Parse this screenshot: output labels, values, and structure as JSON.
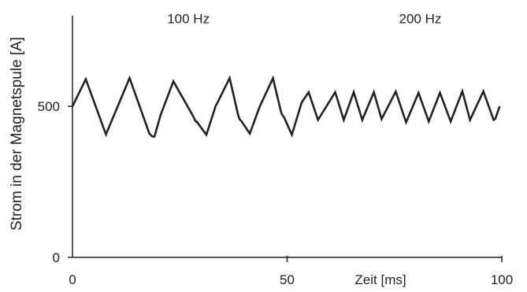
{
  "chart_data": {
    "type": "line",
    "ylabel": "Strom in der Magnetspule [A]",
    "xlabel": "Zeit [ms]",
    "xlim": [
      0,
      100
    ],
    "ylim": [
      0,
      800
    ],
    "grid": false,
    "x_ticks": [
      {
        "value": 0,
        "label": "0"
      },
      {
        "value": 50,
        "label": "50"
      },
      {
        "value": 100,
        "label": "100"
      }
    ],
    "y_ticks": [
      {
        "value": 0,
        "label": "0"
      },
      {
        "value": 500,
        "label": "500"
      }
    ],
    "annotations": [
      {
        "text": "100 Hz",
        "x": 27,
        "y": 775
      },
      {
        "text": "200 Hz",
        "x": 81,
        "y": 775
      }
    ],
    "series": [
      {
        "color": "#222222",
        "points": [
          [
            0,
            500
          ],
          [
            3.1,
            590
          ],
          [
            7.8,
            407
          ],
          [
            13.3,
            594
          ],
          [
            17.9,
            410
          ],
          [
            18.6,
            400
          ],
          [
            19.1,
            400
          ],
          [
            20.5,
            470
          ],
          [
            23.5,
            583
          ],
          [
            28.0,
            470
          ],
          [
            28.7,
            450
          ],
          [
            28.9,
            450
          ],
          [
            31.2,
            406
          ],
          [
            33.4,
            503
          ],
          [
            33.7,
            510
          ],
          [
            36.6,
            594
          ],
          [
            38.6,
            470
          ],
          [
            38.9,
            458
          ],
          [
            39.4,
            450
          ],
          [
            41.3,
            410
          ],
          [
            43.5,
            495
          ],
          [
            43.8,
            505
          ],
          [
            46.7,
            593
          ],
          [
            48.6,
            480
          ],
          [
            48.8,
            473
          ],
          [
            49.3,
            463
          ],
          [
            51.1,
            406
          ],
          [
            53.4,
            513
          ],
          [
            55.0,
            547
          ],
          [
            57.2,
            455
          ],
          [
            61.2,
            547
          ],
          [
            63.2,
            455
          ],
          [
            65.5,
            547
          ],
          [
            67.5,
            455
          ],
          [
            70.2,
            547
          ],
          [
            72.0,
            458
          ],
          [
            75.3,
            549
          ],
          [
            77.7,
            447
          ],
          [
            80.6,
            545
          ],
          [
            83.0,
            450
          ],
          [
            85.6,
            545
          ],
          [
            88.1,
            450
          ],
          [
            90.8,
            550
          ],
          [
            92.6,
            455
          ],
          [
            95.7,
            550
          ],
          [
            98.1,
            455
          ],
          [
            98.5,
            459
          ],
          [
            99.5,
            500
          ]
        ]
      }
    ]
  }
}
